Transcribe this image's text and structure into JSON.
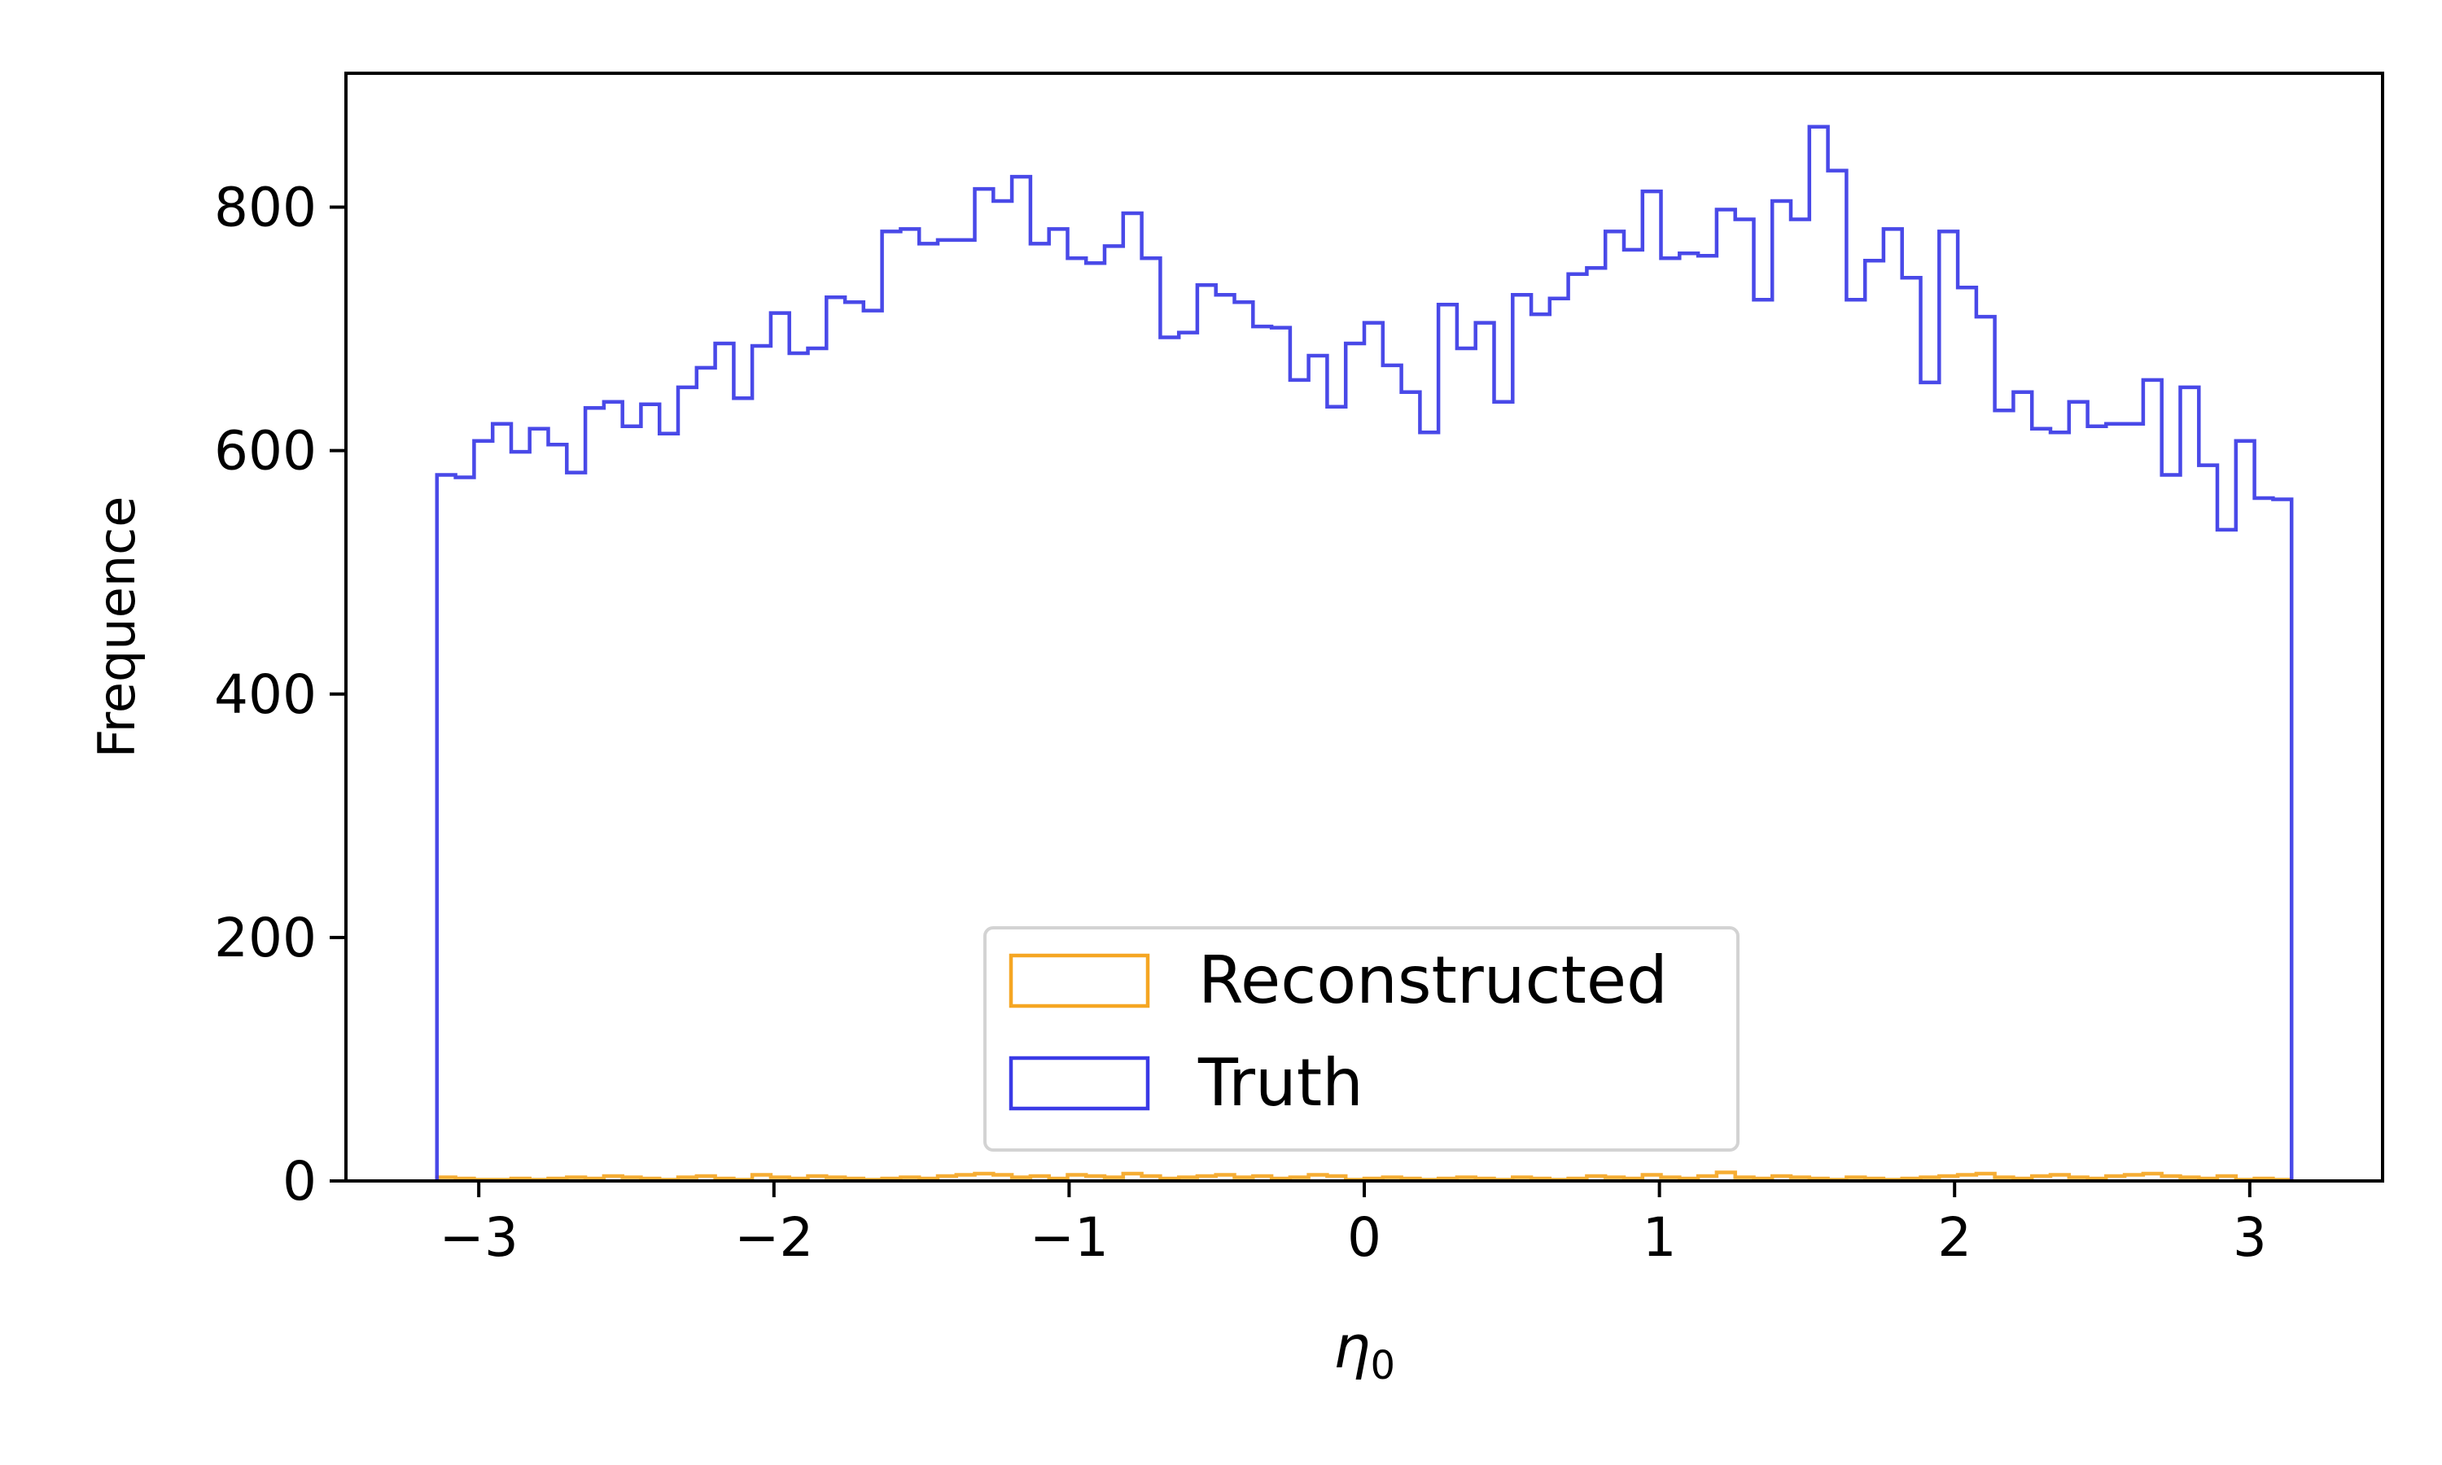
{
  "chart_data": {
    "type": "histogram-step",
    "xlabel_symbol": "η",
    "xlabel_subscript": "0",
    "ylabel": "Frequence",
    "xlim": [
      -3.45,
      3.45
    ],
    "ylim": [
      0,
      910
    ],
    "xticks": [
      -3,
      -2,
      -1,
      0,
      1,
      2,
      3
    ],
    "xtick_labels": [
      "−3",
      "−2",
      "−1",
      "0",
      "1",
      "2",
      "3"
    ],
    "yticks": [
      0,
      200,
      400,
      600,
      800
    ],
    "ytick_labels": [
      "0",
      "200",
      "400",
      "600",
      "800"
    ],
    "bin_range": [
      -3.1416,
      3.1416
    ],
    "legend": {
      "placement": "lower center",
      "entries": [
        "Reconstructed",
        "Truth"
      ]
    },
    "series": [
      {
        "name": "Reconstructed",
        "color": "#f5a623",
        "values": [
          3,
          2,
          1,
          1,
          2,
          1,
          2,
          3,
          2,
          4,
          3,
          2,
          1,
          3,
          4,
          2,
          1,
          5,
          3,
          2,
          4,
          3,
          2,
          1,
          2,
          3,
          2,
          4,
          5,
          6,
          5,
          3,
          4,
          2,
          5,
          4,
          3,
          6,
          4,
          2,
          3,
          4,
          5,
          3,
          4,
          2,
          3,
          5,
          4,
          1,
          2,
          3,
          2,
          1,
          2,
          3,
          2,
          1,
          3,
          2,
          1,
          2,
          4,
          3,
          2,
          5,
          3,
          2,
          4,
          7,
          3,
          2,
          4,
          3,
          2,
          1,
          3,
          2,
          1,
          2,
          3,
          4,
          5,
          6,
          3,
          2,
          4,
          5,
          3,
          2,
          4,
          5,
          6,
          4,
          3,
          2,
          4,
          1,
          2,
          1
        ]
      },
      {
        "name": "Truth",
        "color": "#3a3ae6",
        "values": [
          580,
          578,
          608,
          622,
          599,
          618,
          605,
          582,
          635,
          640,
          620,
          638,
          614,
          652,
          668,
          688,
          643,
          686,
          713,
          680,
          684,
          726,
          722,
          715,
          780,
          782,
          770,
          773,
          773,
          815,
          805,
          825,
          770,
          782,
          758,
          754,
          768,
          795,
          758,
          693,
          697,
          736,
          728,
          722,
          702,
          701,
          658,
          678,
          636,
          688,
          705,
          670,
          648,
          615,
          720,
          684,
          705,
          640,
          728,
          712,
          725,
          745,
          750,
          780,
          765,
          813,
          758,
          762,
          760,
          798,
          790,
          724,
          805,
          790,
          866,
          830,
          724,
          756,
          782,
          742,
          656,
          780,
          734,
          710,
          633,
          648,
          618,
          615,
          640,
          620,
          622,
          622,
          658,
          580,
          652,
          588,
          535,
          608,
          561,
          560
        ]
      }
    ]
  }
}
